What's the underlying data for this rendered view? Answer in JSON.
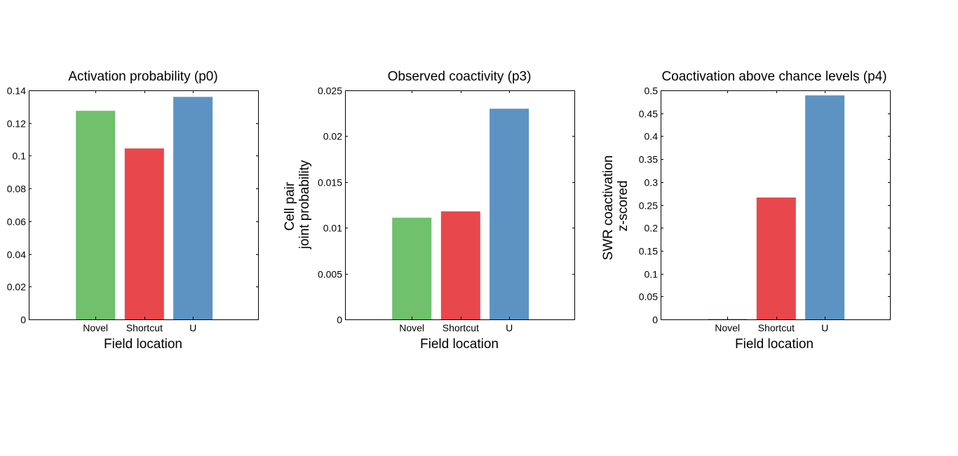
{
  "figure": {
    "background": "#ffffff"
  },
  "colors": {
    "Novel": "#70c06c",
    "Shortcut": "#e8484c",
    "U": "#5d93c2",
    "axis": "#000000"
  },
  "chart_data": [
    {
      "type": "bar",
      "title": "Activation probability (p0)",
      "xlabel": "Field location",
      "ylabel": [],
      "categories": [
        "Novel",
        "Shortcut",
        "U"
      ],
      "values": [
        0.1275,
        0.1045,
        0.136
      ],
      "ylim": [
        0,
        0.14
      ],
      "yticks": [
        0,
        0.02,
        0.04,
        0.06,
        0.08,
        0.1,
        0.12,
        0.14
      ],
      "ytick_labels": [
        "0",
        "0.02",
        "0.04",
        "0.06",
        "0.08",
        "0.1",
        "0.12",
        "0.14"
      ],
      "grid": false,
      "legend": "none"
    },
    {
      "type": "bar",
      "title": "Observed coactivity (p3)",
      "xlabel": "Field location",
      "ylabel": [
        "Cell pair",
        "joint probability"
      ],
      "categories": [
        "Novel",
        "Shortcut",
        "U"
      ],
      "values": [
        0.0111,
        0.0118,
        0.023
      ],
      "ylim": [
        0,
        0.025
      ],
      "yticks": [
        0,
        0.005,
        0.01,
        0.015,
        0.02,
        0.025
      ],
      "ytick_labels": [
        "0",
        "0.005",
        "0.01",
        "0.015",
        "0.02",
        "0.025"
      ],
      "grid": false,
      "legend": "none"
    },
    {
      "type": "bar",
      "title": "Coactivation above chance levels (p4)",
      "xlabel": "Field location",
      "ylabel": [
        "SWR coactivation",
        "z-scored"
      ],
      "categories": [
        "Novel",
        "Shortcut",
        "U"
      ],
      "values": [
        0.001,
        0.266,
        0.489
      ],
      "ylim": [
        0,
        0.5
      ],
      "yticks": [
        0,
        0.05,
        0.1,
        0.15,
        0.2,
        0.25,
        0.3,
        0.35,
        0.4,
        0.45,
        0.5
      ],
      "ytick_labels": [
        "0",
        "0.05",
        "0.1",
        "0.15",
        "0.2",
        "0.25",
        "0.3",
        "0.35",
        "0.4",
        "0.45",
        "0.5"
      ],
      "grid": false,
      "legend": "none"
    }
  ]
}
